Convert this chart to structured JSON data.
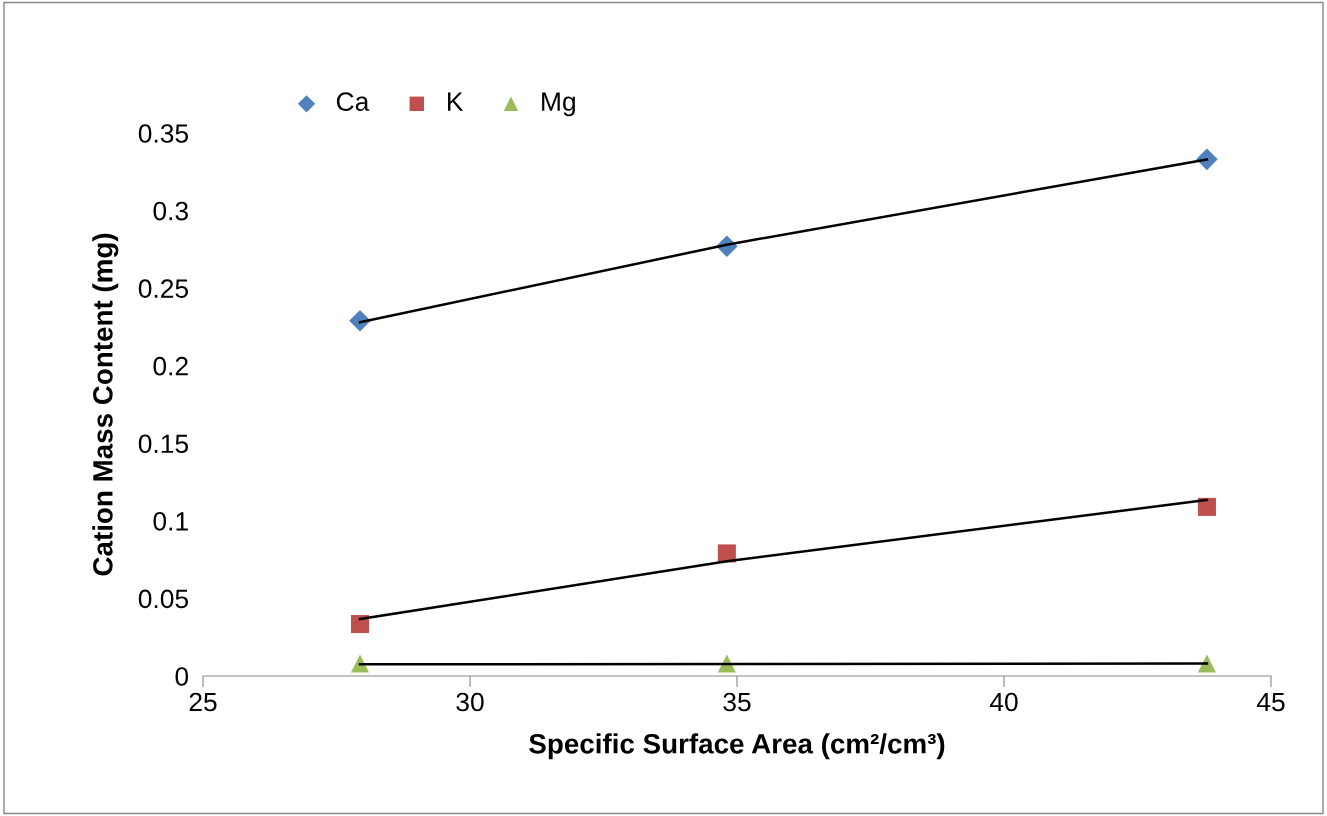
{
  "chart_data": {
    "type": "scatter",
    "xlabel": "Specific Surface Area (cm²/cm³)",
    "ylabel": "Cation Mass Content (mg)",
    "x": [
      27.94,
      34.81,
      43.8
    ],
    "series": [
      {
        "name": "Ca",
        "color": "#4f81bd",
        "marker": "diamond",
        "values": [
          0.229,
          0.277,
          0.333
        ]
      },
      {
        "name": "K",
        "color": "#c0504d",
        "marker": "square",
        "values": [
          0.0335,
          0.079,
          0.109
        ]
      },
      {
        "name": "Mg",
        "color": "#9bbb59",
        "marker": "triangle",
        "values": [
          0.008,
          0.008,
          0.008
        ]
      },
      {
        "type": "line",
        "color": "#000000",
        "marker": "none",
        "x": [
          27.94,
          34.81,
          43.8
        ],
        "values": [
          0.228,
          0.278,
          0.333
        ]
      },
      {
        "type": "line",
        "color": "#000000",
        "marker": "none",
        "x": [
          27.94,
          34.81,
          43.8
        ],
        "values": [
          0.0367,
          0.074,
          0.1135
        ]
      },
      {
        "type": "line",
        "color": "#000000",
        "marker": "none",
        "x": [
          27.94,
          43.8
        ],
        "values": [
          0.0075,
          0.008
        ]
      }
    ],
    "xlim": [
      25,
      45
    ],
    "xticks": [
      25,
      30,
      35,
      40,
      45
    ],
    "ylim": [
      0,
      0.35
    ],
    "yticks": [
      0,
      0.05,
      0.1,
      0.15,
      0.2,
      0.25,
      0.3,
      0.35
    ],
    "grid": false,
    "legend": "top left"
  }
}
